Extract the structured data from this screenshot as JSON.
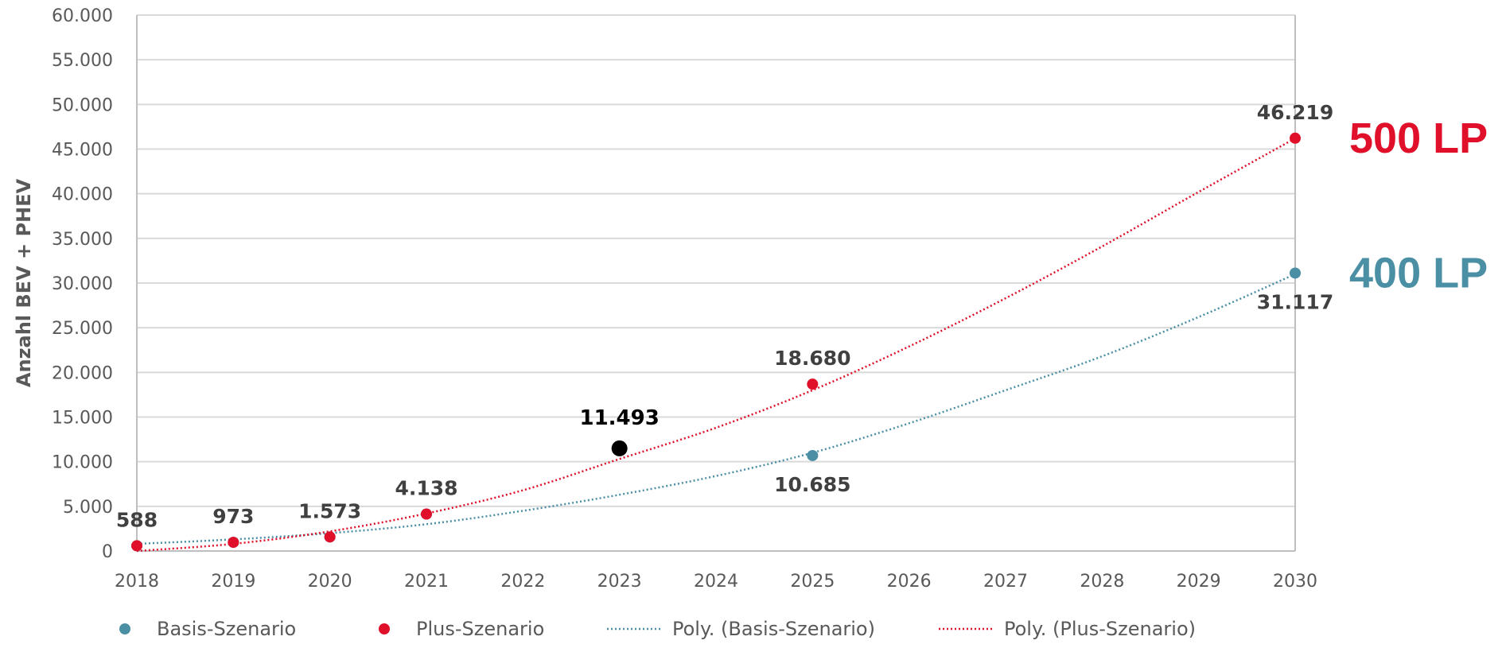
{
  "chart_data": {
    "type": "scatter",
    "ylabel": "Anzahl BEV + PHEV",
    "xlabel": "",
    "x": [
      2018,
      2019,
      2020,
      2021,
      2022,
      2023,
      2024,
      2025,
      2026,
      2027,
      2028,
      2029,
      2030
    ],
    "x_tick_labels": [
      "2018",
      "2019",
      "2020",
      "2021",
      "2022",
      "2023",
      "2024",
      "2025",
      "2026",
      "2027",
      "2028",
      "2029",
      "2030"
    ],
    "ylim": [
      0,
      60000
    ],
    "y_tick_values": [
      0,
      5000,
      10000,
      15000,
      20000,
      25000,
      30000,
      35000,
      40000,
      45000,
      50000,
      55000,
      60000
    ],
    "y_tick_labels": [
      "0",
      "5.000",
      "10.000",
      "15.000",
      "20.000",
      "25.000",
      "30.000",
      "35.000",
      "40.000",
      "45.000",
      "50.000",
      "55.000",
      "60.000"
    ],
    "grid": true,
    "legend_position": "bottom",
    "series": [
      {
        "name": "Basis-Szenario",
        "kind": "points",
        "color": "#4a8fa3",
        "points": [
          {
            "x": 2018,
            "y": 588
          },
          {
            "x": 2019,
            "y": 973
          },
          {
            "x": 2020,
            "y": 1573
          },
          {
            "x": 2021,
            "y": 4138
          },
          {
            "x": 2025,
            "y": 10685
          },
          {
            "x": 2030,
            "y": 31117
          }
        ]
      },
      {
        "name": "Plus-Szenario",
        "kind": "points",
        "color": "#e0102a",
        "points": [
          {
            "x": 2018,
            "y": 588
          },
          {
            "x": 2019,
            "y": 973
          },
          {
            "x": 2020,
            "y": 1573
          },
          {
            "x": 2021,
            "y": 4138
          },
          {
            "x": 2025,
            "y": 18680
          },
          {
            "x": 2030,
            "y": 46219
          }
        ]
      },
      {
        "name": "Poly. (Basis-Szenario)",
        "kind": "trendline",
        "color": "#4a8fa3",
        "points": [
          {
            "x": 2018,
            "y": 800
          },
          {
            "x": 2019,
            "y": 1300
          },
          {
            "x": 2020,
            "y": 2000
          },
          {
            "x": 2021,
            "y": 3000
          },
          {
            "x": 2022,
            "y": 4500
          },
          {
            "x": 2023,
            "y": 6300
          },
          {
            "x": 2024,
            "y": 8400
          },
          {
            "x": 2025,
            "y": 11000
          },
          {
            "x": 2026,
            "y": 14300
          },
          {
            "x": 2027,
            "y": 18000
          },
          {
            "x": 2028,
            "y": 21800
          },
          {
            "x": 2029,
            "y": 26200
          },
          {
            "x": 2030,
            "y": 31000
          }
        ]
      },
      {
        "name": "Poly. (Plus-Szenario)",
        "kind": "trendline",
        "color": "#e0102a",
        "points": [
          {
            "x": 2018,
            "y": 0
          },
          {
            "x": 2019,
            "y": 800
          },
          {
            "x": 2020,
            "y": 2200
          },
          {
            "x": 2021,
            "y": 4200
          },
          {
            "x": 2022,
            "y": 6800
          },
          {
            "x": 2023,
            "y": 10300
          },
          {
            "x": 2024,
            "y": 13800
          },
          {
            "x": 2025,
            "y": 18000
          },
          {
            "x": 2026,
            "y": 22900
          },
          {
            "x": 2027,
            "y": 28300
          },
          {
            "x": 2028,
            "y": 34100
          },
          {
            "x": 2029,
            "y": 40200
          },
          {
            "x": 2030,
            "y": 46200
          }
        ]
      }
    ],
    "data_labels": [
      {
        "x": 2018,
        "y": 588,
        "text": "588",
        "position": "above",
        "series": "Plus-Szenario"
      },
      {
        "x": 2019,
        "y": 973,
        "text": "973",
        "position": "above",
        "series": "Plus-Szenario"
      },
      {
        "x": 2020,
        "y": 1573,
        "text": "1.573",
        "position": "above",
        "series": "Plus-Szenario"
      },
      {
        "x": 2021,
        "y": 4138,
        "text": "4.138",
        "position": "above",
        "series": "Plus-Szenario"
      },
      {
        "x": 2025,
        "y": 18680,
        "text": "18.680",
        "position": "above",
        "series": "Plus-Szenario"
      },
      {
        "x": 2030,
        "y": 46219,
        "text": "46.219",
        "position": "above",
        "series": "Plus-Szenario"
      },
      {
        "x": 2025,
        "y": 10685,
        "text": "10.685",
        "position": "below",
        "series": "Basis-Szenario"
      },
      {
        "x": 2030,
        "y": 31117,
        "text": "31.117",
        "position": "below",
        "series": "Basis-Szenario"
      }
    ],
    "highlight_point": {
      "x": 2023,
      "y": 11493,
      "text": "11.493",
      "color": "#000000"
    },
    "annotations": [
      {
        "text": "500 LP",
        "color": "#e0102a",
        "anchor_series": "Plus-Szenario",
        "anchor_x": 2030,
        "anchor_y": 46219
      },
      {
        "text": "400 LP",
        "color": "#4a8fa3",
        "anchor_series": "Basis-Szenario",
        "anchor_x": 2030,
        "anchor_y": 31117
      }
    ],
    "legend": [
      {
        "label": "Basis-Szenario",
        "marker": "dot",
        "color": "#4a8fa3"
      },
      {
        "label": "Plus-Szenario",
        "marker": "dot",
        "color": "#e0102a"
      },
      {
        "label": "Poly. (Basis-Szenario)",
        "marker": "dotted-line",
        "color": "#4a8fa3"
      },
      {
        "label": "Poly. (Plus-Szenario)",
        "marker": "dotted-line",
        "color": "#e0102a"
      }
    ],
    "colors": {
      "grid": "#d9d9d9",
      "axis": "#bfbfbf"
    }
  }
}
